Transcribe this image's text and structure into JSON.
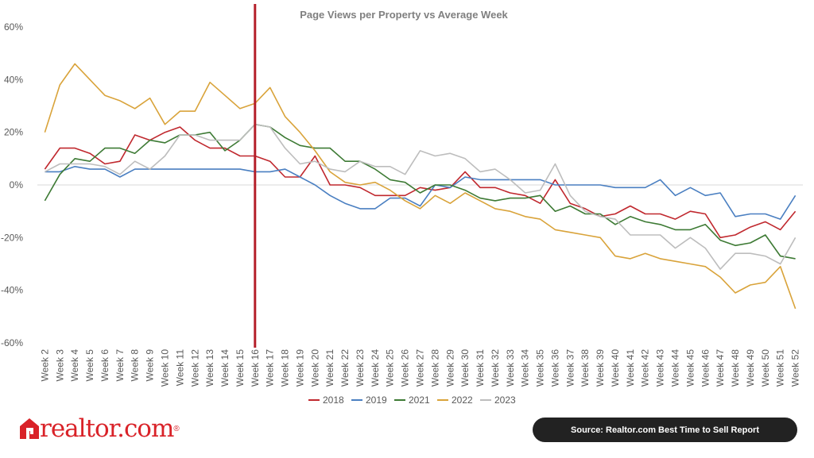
{
  "chart_data": {
    "type": "line",
    "title": "Page Views per Property vs Average Week",
    "xlabel": "",
    "ylabel": "",
    "ylim": [
      -60,
      60
    ],
    "yticks": [
      "60%",
      "40%",
      "20%",
      "0%",
      "-20%",
      "-40%",
      "-60%"
    ],
    "grid": "horizontal-zero-line",
    "legend_position": "bottom",
    "highlight_category": "Week 16",
    "categories": [
      "Week 2",
      "Week 3",
      "Week 4",
      "Week 5",
      "Week 6",
      "Week 7",
      "Week 8",
      "Week 9",
      "Week 10",
      "Week 11",
      "Week 12",
      "Week 13",
      "Week 14",
      "Week 15",
      "Week 16",
      "Week 17",
      "Week 18",
      "Week 19",
      "Week 20",
      "Week 21",
      "Week 22",
      "Week 23",
      "Week 24",
      "Week 25",
      "Week 26",
      "Week 27",
      "Week 28",
      "Week 29",
      "Week 30",
      "Week 31",
      "Week 32",
      "Week 33",
      "Week 34",
      "Week 35",
      "Week 36",
      "Week 37",
      "Week 38",
      "Week 39",
      "Week 40",
      "Week 41",
      "Week 42",
      "Week 43",
      "Week 44",
      "Week 45",
      "Week 46",
      "Week 47",
      "Week 48",
      "Week 49",
      "Week 50",
      "Week 51",
      "Week 52"
    ],
    "series": [
      {
        "name": "2018",
        "color": "#c0282e",
        "values": [
          6,
          14,
          14,
          12,
          8,
          9,
          19,
          17,
          20,
          22,
          17,
          14,
          14,
          11,
          11,
          9,
          3,
          3,
          11,
          0,
          0,
          -1,
          -4,
          -4,
          -4,
          -1,
          -2,
          -1,
          5,
          -1,
          -1,
          -3,
          -4,
          -7,
          2,
          -7,
          -9,
          -12,
          -11,
          -8,
          -11,
          -11,
          -13,
          -10,
          -11,
          -20,
          -19,
          -16,
          -14,
          -17,
          -10
        ]
      },
      {
        "name": "2019",
        "color": "#4a7fc1",
        "values": [
          5,
          5,
          7,
          6,
          6,
          3,
          6,
          6,
          6,
          6,
          6,
          6,
          6,
          6,
          5,
          5,
          6,
          3,
          0,
          -4,
          -7,
          -9,
          -9,
          -5,
          -5,
          -8,
          0,
          -1,
          3,
          2,
          2,
          2,
          2,
          2,
          0,
          0,
          0,
          0,
          -1,
          -1,
          -1,
          2,
          -4,
          -1,
          -4,
          -3,
          -12,
          -11,
          -11,
          -13,
          -4
        ]
      },
      {
        "name": "2021",
        "color": "#3d7a34",
        "values": [
          -6,
          4,
          10,
          9,
          14,
          14,
          12,
          17,
          16,
          19,
          19,
          20,
          13,
          17,
          23,
          22,
          18,
          15,
          14,
          14,
          9,
          9,
          6,
          2,
          1,
          -3,
          0,
          0,
          -2,
          -5,
          -6,
          -5,
          -5,
          -4,
          -10,
          -8,
          -11,
          -11,
          -15,
          -12,
          -14,
          -15,
          -17,
          -17,
          -15,
          -21,
          -23,
          -22,
          -19,
          -27,
          -28
        ]
      },
      {
        "name": "2022",
        "color": "#d9a33a",
        "values": [
          20,
          38,
          46,
          40,
          34,
          32,
          29,
          33,
          23,
          28,
          28,
          39,
          34,
          29,
          31,
          37,
          26,
          20,
          13,
          5,
          1,
          0,
          1,
          -2,
          -6,
          -9,
          -4,
          -7,
          -3,
          -6,
          -9,
          -10,
          -12,
          -13,
          -17,
          -18,
          -19,
          -20,
          -27,
          -28,
          -26,
          -28,
          -29,
          -30,
          -31,
          -35,
          -41,
          -38,
          -37,
          -31,
          -47
        ]
      },
      {
        "name": "2023",
        "color": "#bdbdbd",
        "values": [
          5,
          8,
          8,
          8,
          7,
          4,
          9,
          6,
          11,
          19,
          19,
          17,
          17,
          17,
          23,
          22,
          14,
          8,
          9,
          6,
          5,
          9,
          7,
          7,
          4,
          13,
          11,
          12,
          10,
          5,
          6,
          2,
          -3,
          -2,
          8,
          -4,
          -10,
          -12,
          -13,
          -19,
          -19,
          -19,
          -24,
          -20,
          -24,
          -32,
          -26,
          -26,
          -27,
          -30,
          -20
        ]
      }
    ]
  },
  "footer": {
    "logo_text": "realtor.com",
    "logo_tm": "®",
    "source": "Source: Realtor.com Best Time to Sell Report"
  }
}
